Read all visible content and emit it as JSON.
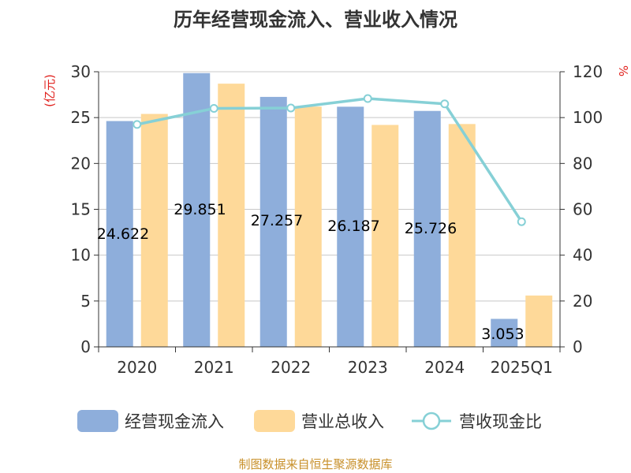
{
  "title": "历年经营现金流入、营业收入情况",
  "source": "制图数据来自恒生聚源数据库",
  "chart_data": {
    "type": "bar",
    "title": "历年经营现金流入、营业收入情况",
    "categories": [
      "2020",
      "2021",
      "2022",
      "2023",
      "2024",
      "2025Q1"
    ],
    "y_left": {
      "unit": "(亿元)",
      "ylim": [
        0,
        30
      ],
      "ticks": [
        "0",
        "5",
        "10",
        "15",
        "20",
        "25",
        "30"
      ]
    },
    "y_right": {
      "unit": "%",
      "ylim": [
        0,
        120
      ],
      "ticks": [
        "0",
        "20",
        "40",
        "60",
        "80",
        "100",
        "120"
      ]
    },
    "grid": true,
    "legend_position": "bottom",
    "series": [
      {
        "name": "经营现金流入",
        "type": "bar",
        "axis": "left",
        "color": "#8eaedb",
        "values": [
          24.622,
          29.851,
          27.257,
          26.187,
          25.726,
          3.053
        ],
        "labels": [
          "24.622",
          "29.851",
          "27.257",
          "26.187",
          "25.726",
          "3.053"
        ]
      },
      {
        "name": "营业总收入",
        "type": "bar",
        "axis": "left",
        "color": "#fed999",
        "values": [
          25.4,
          28.7,
          26.2,
          24.2,
          24.3,
          5.6
        ]
      },
      {
        "name": "营收现金比",
        "type": "line",
        "axis": "right",
        "color": "#86d0d6",
        "values": [
          97.0,
          104.0,
          104.2,
          108.3,
          106.0,
          54.6
        ]
      }
    ]
  }
}
